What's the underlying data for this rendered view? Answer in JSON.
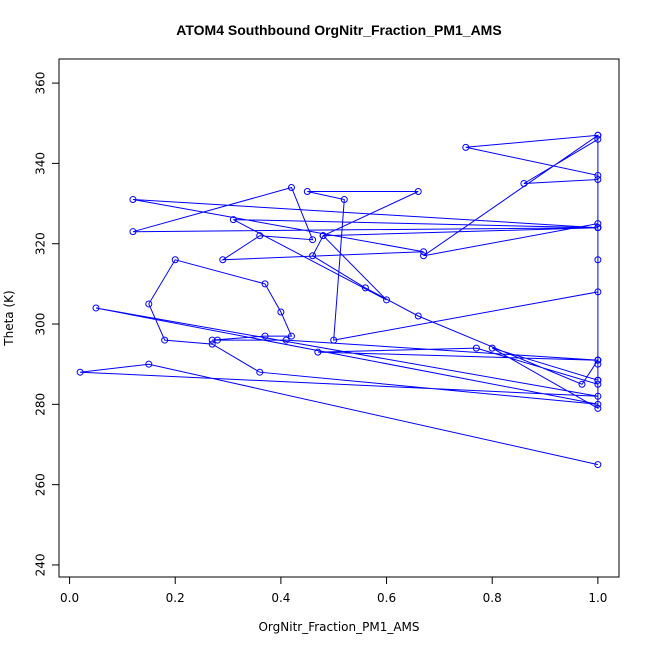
{
  "chart_data": {
    "type": "line",
    "title": "ATOM4 Southbound OrgNitr_Fraction_PM1_AMS",
    "xlabel": "OrgNitr_Fraction_PM1_AMS",
    "ylabel": "Theta (K)",
    "xlim": [
      -0.02,
      1.04
    ],
    "ylim": [
      237,
      366
    ],
    "x_ticks": [
      0.0,
      0.2,
      0.4,
      0.6,
      0.8,
      1.0
    ],
    "x_tick_labels": [
      "0.0",
      "0.2",
      "0.4",
      "0.6",
      "0.8",
      "1.0"
    ],
    "y_ticks": [
      240,
      260,
      280,
      300,
      320,
      340,
      360
    ],
    "y_tick_labels": [
      "240",
      "260",
      "280",
      "300",
      "320",
      "340",
      "360"
    ],
    "grid": false,
    "legend": "none",
    "color": "#0000ff",
    "series": [
      {
        "x": [
          1.0,
          0.15,
          0.02,
          1.0,
          0.05,
          1.0,
          0.36,
          0.27,
          0.18,
          0.15,
          0.2,
          0.37,
          0.4,
          0.42,
          0.37,
          0.27,
          0.28,
          0.41,
          1.0,
          0.97,
          0.66,
          0.56,
          0.46,
          0.48,
          0.6,
          0.31,
          1.0,
          0.12,
          0.67,
          0.29,
          0.36,
          0.46,
          0.42,
          0.12,
          1.0,
          1.0,
          0.75,
          1.0,
          1.0,
          0.86,
          1.0,
          1.0,
          0.67,
          1.0,
          1.0,
          1.0,
          1.0,
          0.47,
          0.77,
          1.0,
          1.0,
          0.8,
          1.0,
          1.0,
          1.0,
          1.0,
          0.5,
          0.52,
          0.45,
          0.66,
          0.48,
          1.0
        ],
        "y": [
          265,
          290,
          288,
          282,
          304,
          280,
          288,
          295,
          296,
          305,
          316,
          310,
          303,
          297,
          297,
          296,
          296,
          296,
          291,
          285,
          302,
          309,
          317,
          322,
          306,
          326,
          324,
          331,
          318,
          316,
          322,
          321,
          334,
          323,
          324,
          337,
          344,
          347,
          346,
          335,
          336,
          325,
          317,
          347,
          290,
          286,
          291,
          293,
          294,
          285,
          279,
          294,
          286,
          291,
          316,
          308,
          296,
          331,
          333,
          333,
          322,
          324
        ]
      }
    ]
  }
}
